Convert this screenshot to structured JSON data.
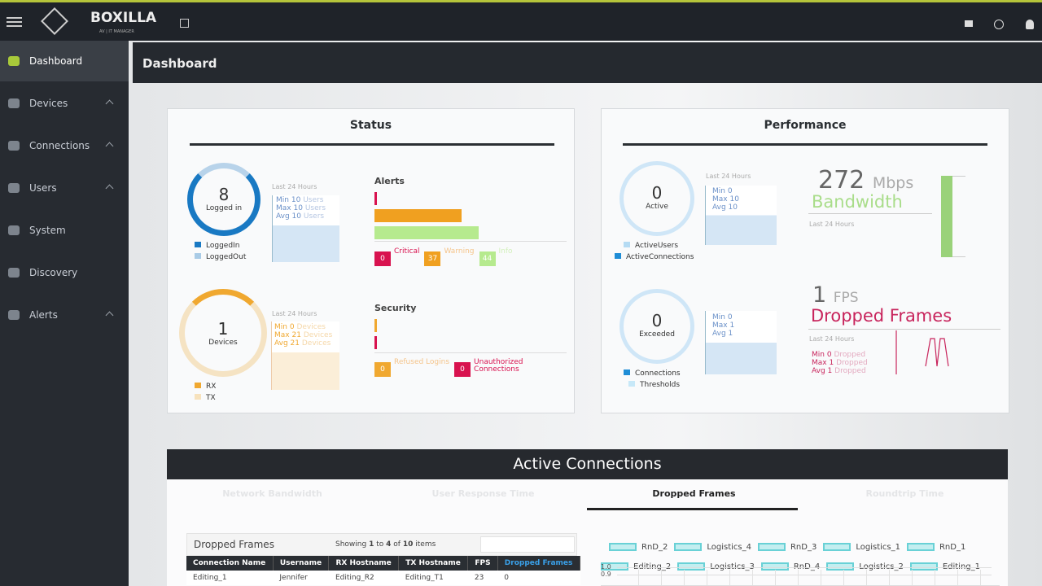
{
  "header": {
    "brand": "BOXILLA",
    "tagline": "AV | IT MANAGER"
  },
  "sidebar": [
    {
      "label": "Dashboard"
    },
    {
      "label": "Devices"
    },
    {
      "label": "Connections"
    },
    {
      "label": "Users"
    },
    {
      "label": "System"
    },
    {
      "label": "Discovery"
    },
    {
      "label": "Alerts"
    }
  ],
  "page_title": "Dashboard",
  "status": {
    "title": "Status",
    "logged_in": {
      "value": 8,
      "label": "Logged in",
      "period": "Last 24 Hours",
      "stats": [
        {
          "name": "Min",
          "value": 10,
          "unit": "Users"
        },
        {
          "name": "Max",
          "value": 10,
          "unit": "Users"
        },
        {
          "name": "Avg",
          "value": 10,
          "unit": "Users"
        }
      ],
      "legend": [
        "LoggedIn",
        "LoggedOut"
      ]
    },
    "devices": {
      "value": 1,
      "label": "Devices",
      "period": "Last 24 Hours",
      "stats": [
        {
          "name": "Min",
          "value": 0,
          "unit": "Devices"
        },
        {
          "name": "Max",
          "value": 21,
          "unit": "Devices"
        },
        {
          "name": "Avg",
          "value": 21,
          "unit": "Devices"
        }
      ],
      "legend": [
        "RX",
        "TX"
      ]
    },
    "alerts": {
      "title": "Alerts",
      "items": [
        {
          "name": "Critical",
          "value": 0
        },
        {
          "name": "Warning",
          "value": 37
        },
        {
          "name": "Info",
          "value": 44
        }
      ]
    },
    "security": {
      "title": "Security",
      "items": [
        {
          "name": "Refused Logins",
          "value": 0
        },
        {
          "name": "Unauthorized Connections",
          "value": 0
        }
      ]
    }
  },
  "performance": {
    "title": "Performance",
    "active": {
      "value": 0,
      "label": "Active",
      "period": "Last 24 Hours",
      "stats": [
        {
          "name": "Min",
          "value": 0
        },
        {
          "name": "Max",
          "value": 10
        },
        {
          "name": "Avg",
          "value": 10
        }
      ],
      "legend": [
        "ActiveUsers",
        "ActiveConnections"
      ]
    },
    "exceeded": {
      "value": 0,
      "label": "Exceeded",
      "stats": [
        {
          "name": "Min",
          "value": 0
        },
        {
          "name": "Max",
          "value": 1
        },
        {
          "name": "Avg",
          "value": 1
        }
      ],
      "legend": [
        "Connections",
        "Thresholds"
      ]
    },
    "bandwidth": {
      "value": 272,
      "unit": "Mbps",
      "label": "Bandwidth",
      "period": "Last 24 Hours"
    },
    "dropped": {
      "value": 1,
      "unit": "FPS",
      "label": "Dropped Frames",
      "period": "Last 24 Hours",
      "stats": [
        {
          "name": "Min",
          "value": 0,
          "unit": "Dropped"
        },
        {
          "name": "Max",
          "value": 1,
          "unit": "Dropped"
        },
        {
          "name": "Avg",
          "value": 1,
          "unit": "Dropped"
        }
      ]
    }
  },
  "active_connections": {
    "title": "Active Connections",
    "tabs": [
      "Network Bandwidth",
      "User Response Time",
      "Dropped Frames",
      "Roundtrip Time"
    ],
    "table": {
      "title": "Dropped Frames",
      "showing": {
        "prefix": "Showing",
        "from": 1,
        "to_word": "to",
        "to": 4,
        "of_word": "of",
        "total": 10,
        "suffix": "items"
      },
      "columns": [
        "Connection Name",
        "Username",
        "RX Hostname",
        "TX Hostname",
        "FPS",
        "Dropped Frames"
      ],
      "rows": [
        [
          "Editing_1",
          "Jennifer",
          "Editing_R2",
          "Editing_T1",
          23,
          0
        ]
      ]
    },
    "legend": [
      "RnD_2",
      "Logistics_4",
      "RnD_3",
      "Logistics_1",
      "RnD_1",
      "Editing_2",
      "Logistics_3",
      "RnD_4",
      "Logistics_2",
      "Editing_1"
    ],
    "yticks": [
      {
        "value": 1,
        "label": "1.0"
      },
      {
        "value": 0.9,
        "label": "0.9"
      }
    ]
  }
}
